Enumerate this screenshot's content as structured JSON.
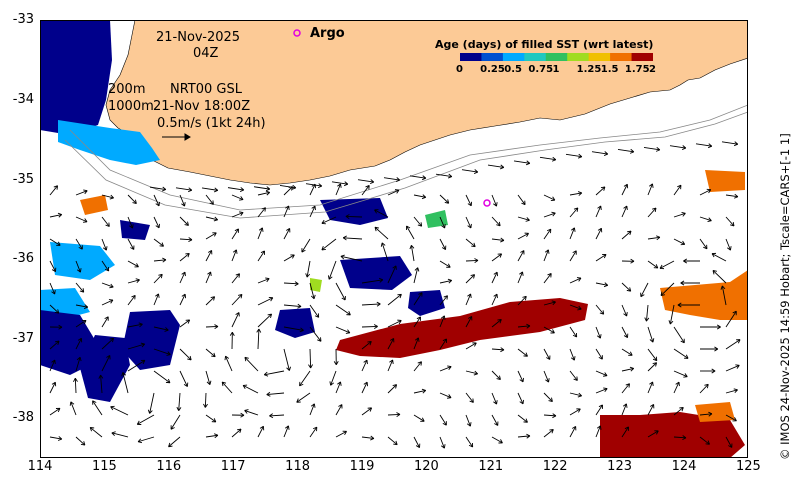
{
  "date_line": "21-Nov-2025",
  "time_line": "04Z",
  "argo_label": "Argo",
  "depth_200": "200m",
  "depth_1000": "1000m",
  "product_line": "NRT00 GSL",
  "sla_time": "21-Nov 18:00Z",
  "vector_scale": "0.5m/s (1kt 24h)",
  "legend": {
    "title": "Age (days) of filled SST (wrt latest)",
    "ticks": [
      "0",
      "0.25",
      "0.5",
      "0.75",
      "1",
      "1.25",
      "1.5",
      "1.75",
      "2"
    ],
    "colors": [
      "#00008b",
      "#0050d0",
      "#00aaff",
      "#20c8c0",
      "#30c060",
      "#a0dc20",
      "#f0c000",
      "#f07000",
      "#a00000"
    ]
  },
  "credit": "© IMOS 24-Nov-2025 14:59 Hobart; Tscale=CARS+[-1 1]",
  "x_axis": {
    "labels": [
      "114",
      "115",
      "116",
      "117",
      "118",
      "119",
      "120",
      "121",
      "122",
      "123",
      "124",
      "125"
    ]
  },
  "y_axis": {
    "labels": [
      "-33",
      "-34",
      "-35",
      "-36",
      "-37",
      "-38"
    ]
  },
  "colors": {
    "land": "#fcca96",
    "argo": "#e000e0"
  }
}
